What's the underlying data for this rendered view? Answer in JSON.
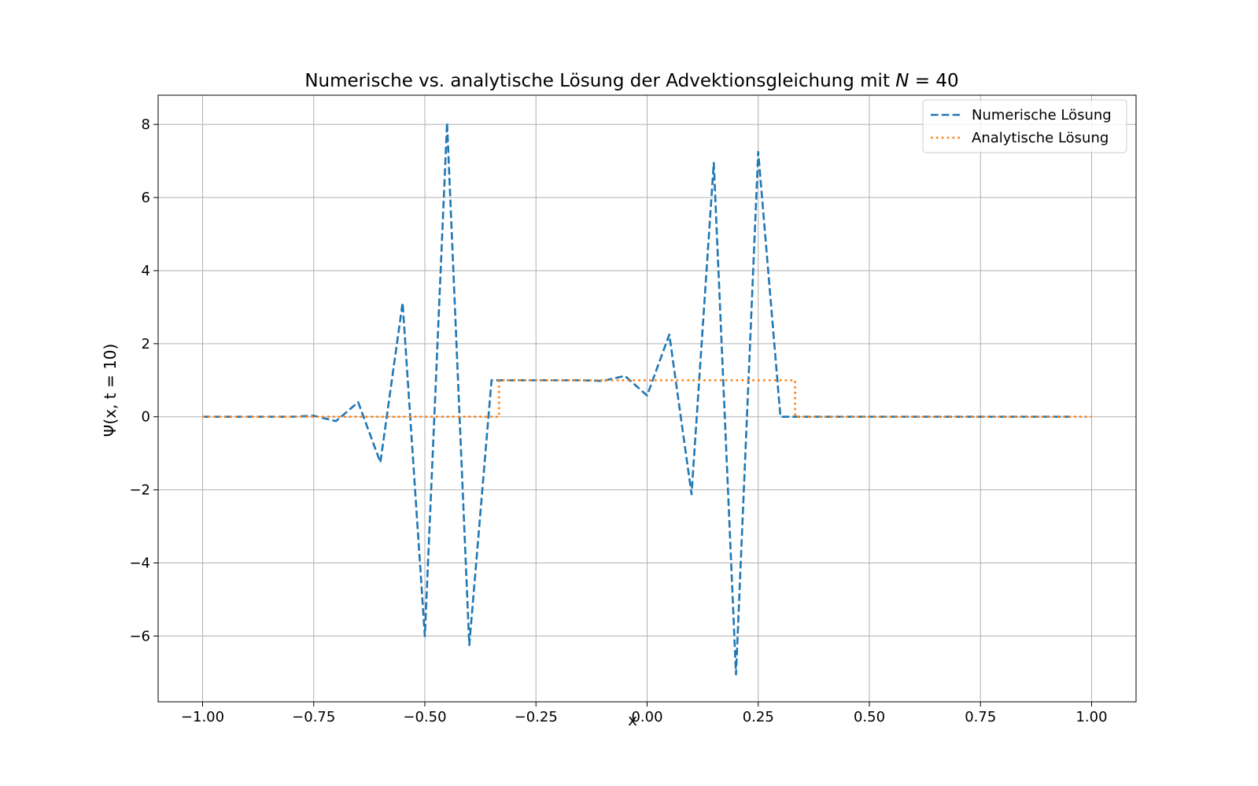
{
  "chart_data": {
    "type": "line",
    "title": "Numerische vs. analytische Lösung der Advektionsgleichung mit N = 40",
    "title_parts": {
      "text": "Numerische vs. analytische Lösung der Advektionsgleichung mit ",
      "var": "N",
      "eq": " = 40"
    },
    "xlabel": "x",
    "ylabel": "Ψ(x, t = 10)",
    "xlim": [
      -1.1,
      1.1
    ],
    "ylim": [
      -7.8,
      8.8
    ],
    "grid": true,
    "legend_position": "top-right",
    "xticks": [
      -1.0,
      -0.75,
      -0.5,
      -0.25,
      0.0,
      0.25,
      0.5,
      0.75,
      1.0
    ],
    "xtick_labels": [
      "−1.00",
      "−0.75",
      "−0.50",
      "−0.25",
      "0.00",
      "0.25",
      "0.50",
      "0.75",
      "1.00"
    ],
    "yticks": [
      -6,
      -4,
      -2,
      0,
      2,
      4,
      6,
      8
    ],
    "ytick_labels": [
      "−6",
      "−4",
      "−2",
      "0",
      "2",
      "4",
      "6",
      "8"
    ],
    "series": [
      {
        "name": "Numerische Lösung",
        "color": "#1f77b4",
        "style": "dashed",
        "x": [
          -1.0,
          -0.95,
          -0.9,
          -0.85,
          -0.8,
          -0.75,
          -0.7,
          -0.65,
          -0.6,
          -0.55,
          -0.5,
          -0.45,
          -0.4,
          -0.35,
          -0.3,
          -0.25,
          -0.2,
          -0.15,
          -0.1,
          -0.05,
          0.0,
          0.05,
          0.1,
          0.15,
          0.2,
          0.25,
          0.3,
          0.35,
          0.4,
          0.45,
          0.5,
          0.55,
          0.6,
          0.65,
          0.7,
          0.75,
          0.8,
          0.85,
          0.9,
          0.95
        ],
        "y": [
          0.0,
          0.0,
          0.0,
          0.0,
          0.0,
          0.03,
          -0.12,
          0.4,
          -1.25,
          3.12,
          -6.0,
          8.05,
          -6.25,
          1.0,
          1.0,
          1.0,
          1.0,
          1.0,
          0.98,
          1.12,
          0.58,
          2.25,
          -2.12,
          6.95,
          -7.05,
          7.25,
          0.0,
          0.0,
          0.0,
          0.0,
          0.0,
          0.0,
          0.0,
          0.0,
          0.0,
          0.0,
          0.0,
          0.0,
          0.0,
          0.0
        ]
      },
      {
        "name": "Analytische Lösung",
        "color": "#ff7f0e",
        "style": "dotted",
        "x": [
          -1.0,
          -0.333,
          -0.333,
          0.333,
          0.333,
          1.0
        ],
        "y": [
          0.0,
          0.0,
          1.0,
          1.0,
          0.0,
          0.0
        ]
      }
    ]
  }
}
